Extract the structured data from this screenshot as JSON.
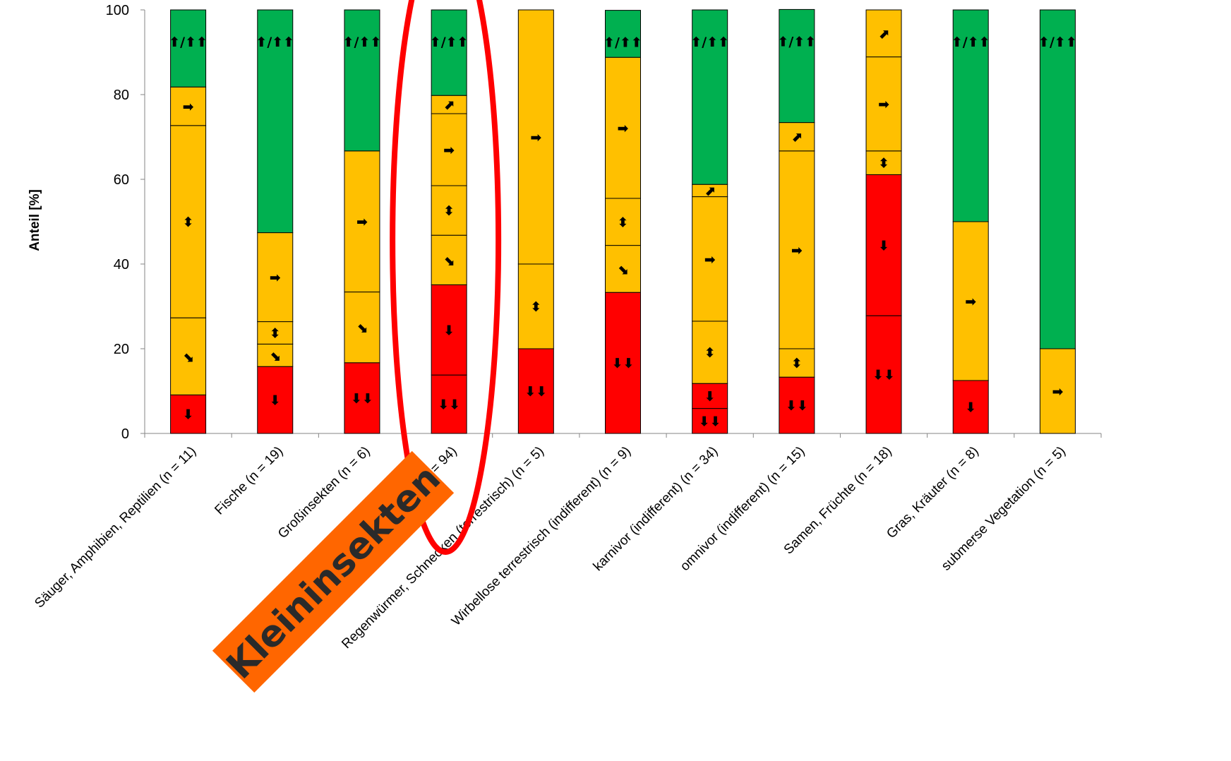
{
  "chart_data": {
    "type": "bar",
    "stacked": true,
    "ylabel": "Anteil [%]",
    "ylim": [
      0,
      100
    ],
    "yticks": [
      0,
      20,
      40,
      60,
      80,
      100
    ],
    "colors": {
      "decline": "#ff0000",
      "stable": "#ffc000",
      "increase": "#00b050"
    },
    "categories": [
      "Säuger, Amphibien, Reptilien (n = 11)",
      "Fische (n = 19)",
      "Großinsekten (n = 6)",
      "(n = 94)",
      "Regenwürmer, Schnecken (terrestrisch) (n = 5)",
      "Wirbellose terrestrisch (indifferent) (n = 9)",
      "karnivor (indifferent) (n = 34)",
      "omnivor (indifferent) (n = 15)",
      "Samen, Früchte (n = 18)",
      "Gras, Kräuter (n = 8)",
      "submerse Vegetation (n = 5)"
    ],
    "stacks": [
      [
        {
          "value": 9.1,
          "color": "decline",
          "trend": "down"
        },
        {
          "value": 18.2,
          "color": "stable",
          "trend": "down-right"
        },
        {
          "value": 45.4,
          "color": "stable",
          "trend": "updown"
        },
        {
          "value": 9.1,
          "color": "stable",
          "trend": "right"
        },
        {
          "value": 18.2,
          "color": "increase",
          "trend": "up-double"
        }
      ],
      [
        {
          "value": 15.8,
          "color": "decline",
          "trend": "down"
        },
        {
          "value": 5.3,
          "color": "stable",
          "trend": "down-right"
        },
        {
          "value": 5.3,
          "color": "stable",
          "trend": "updown"
        },
        {
          "value": 21.0,
          "color": "stable",
          "trend": "right"
        },
        {
          "value": 52.6,
          "color": "increase",
          "trend": "up-double"
        }
      ],
      [
        {
          "value": 16.7,
          "color": "decline",
          "trend": "down-down"
        },
        {
          "value": 16.7,
          "color": "stable",
          "trend": "down-right"
        },
        {
          "value": 33.3,
          "color": "stable",
          "trend": "right"
        },
        {
          "value": 33.3,
          "color": "increase",
          "trend": "up-double"
        }
      ],
      [
        {
          "value": 13.8,
          "color": "decline",
          "trend": "down-down"
        },
        {
          "value": 21.3,
          "color": "decline",
          "trend": "down"
        },
        {
          "value": 11.7,
          "color": "stable",
          "trend": "down-right"
        },
        {
          "value": 11.7,
          "color": "stable",
          "trend": "updown"
        },
        {
          "value": 17.0,
          "color": "stable",
          "trend": "right"
        },
        {
          "value": 4.3,
          "color": "stable",
          "trend": "up-right"
        },
        {
          "value": 20.2,
          "color": "increase",
          "trend": "up-double"
        }
      ],
      [
        {
          "value": 20.0,
          "color": "decline",
          "trend": "down-down"
        },
        {
          "value": 20.0,
          "color": "stable",
          "trend": "updown"
        },
        {
          "value": 60.0,
          "color": "stable",
          "trend": "right"
        }
      ],
      [
        {
          "value": 33.3,
          "color": "decline",
          "trend": "down-down"
        },
        {
          "value": 11.1,
          "color": "stable",
          "trend": "down-right"
        },
        {
          "value": 11.1,
          "color": "stable",
          "trend": "updown"
        },
        {
          "value": 33.3,
          "color": "stable",
          "trend": "right"
        },
        {
          "value": 11.1,
          "color": "increase",
          "trend": "up-double"
        }
      ],
      [
        {
          "value": 5.9,
          "color": "decline",
          "trend": "down-down"
        },
        {
          "value": 5.9,
          "color": "decline",
          "trend": "down"
        },
        {
          "value": 14.7,
          "color": "stable",
          "trend": "updown"
        },
        {
          "value": 29.4,
          "color": "stable",
          "trend": "right"
        },
        {
          "value": 2.9,
          "color": "stable",
          "trend": "up-right"
        },
        {
          "value": 41.2,
          "color": "increase",
          "trend": "up-double"
        }
      ],
      [
        {
          "value": 13.3,
          "color": "decline",
          "trend": "down-down"
        },
        {
          "value": 6.7,
          "color": "stable",
          "trend": "updown"
        },
        {
          "value": 46.7,
          "color": "stable",
          "trend": "right"
        },
        {
          "value": 6.7,
          "color": "stable",
          "trend": "up-right"
        },
        {
          "value": 26.7,
          "color": "increase",
          "trend": "up-double"
        }
      ],
      [
        {
          "value": 27.8,
          "color": "decline",
          "trend": "down-down"
        },
        {
          "value": 33.3,
          "color": "decline",
          "trend": "down"
        },
        {
          "value": 5.6,
          "color": "stable",
          "trend": "updown"
        },
        {
          "value": 22.2,
          "color": "stable",
          "trend": "right"
        },
        {
          "value": 11.1,
          "color": "stable",
          "trend": "up-right"
        }
      ],
      [
        {
          "value": 12.5,
          "color": "decline",
          "trend": "down"
        },
        {
          "value": 37.5,
          "color": "stable",
          "trend": "right"
        },
        {
          "value": 50.0,
          "color": "increase",
          "trend": "up-double"
        }
      ],
      [
        {
          "value": 20.0,
          "color": "stable",
          "trend": "right"
        },
        {
          "value": 80.0,
          "color": "increase",
          "trend": "up-double"
        }
      ]
    ],
    "trend_symbols": {
      "down": "⬇",
      "down-down": "⬇⬇",
      "down-right": "⬊",
      "updown": "⬍",
      "right": "➡",
      "up-right": "⬈",
      "up-double": "⬆/⬆⬆"
    },
    "highlight_index": 3,
    "callout": {
      "text": "Kleininsekten",
      "color": "#ff6600",
      "ellipse_color": "#ff0000"
    }
  }
}
